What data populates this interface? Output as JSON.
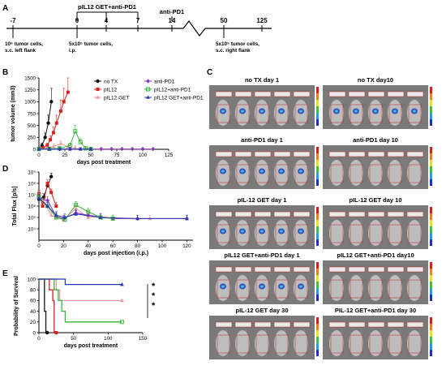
{
  "panel_labels": {
    "A": "A",
    "B": "B",
    "C": "C",
    "D": "D",
    "E": "E"
  },
  "timeline": {
    "ticks": [
      "-7",
      "0",
      "4",
      "7",
      "14",
      "50",
      "125"
    ],
    "top_labels": [
      {
        "text": "pIL12 GET+anti-PD1"
      },
      {
        "text": "anti-PD1"
      }
    ],
    "bottom_labels": [
      {
        "line1": "10⁶ tumor cells,",
        "line2": "s.c. left flank"
      },
      {
        "line1": "5x10⁵ tumor cells,",
        "line2": "i.p."
      },
      {
        "line1": "5x10⁵ tumor cells,",
        "line2": "s.c. right flank"
      }
    ]
  },
  "colors": {
    "noTX": "#111111",
    "pIL12": "#d42020",
    "pIL12GET": "#e89aa0",
    "antiPD1": "#8a35b8",
    "pIL12antiPD1": "#3ab53a",
    "combo": "#2838b0"
  },
  "chart_data": [
    {
      "id": "B",
      "type": "line",
      "ylabel": "tumor volume (mm3)",
      "xlabel": "days post treatment",
      "xlim": [
        0,
        125
      ],
      "ylim": [
        0,
        1500
      ],
      "x_ticks": [
        "0",
        "25",
        "50",
        "75",
        "100",
        "125"
      ],
      "y_ticks": [
        "0",
        "250",
        "500",
        "750",
        "1000",
        "1250",
        "1500"
      ],
      "legend": [
        "no TX",
        "pIL12",
        "pIL12 GET",
        "anti-PD1",
        "pIL12+anti-PD1",
        "pIL12 GET+anti-PD1"
      ],
      "series": [
        {
          "name": "no TX",
          "x": [
            0,
            3,
            6,
            9,
            12
          ],
          "y": [
            10,
            80,
            250,
            550,
            1000
          ]
        },
        {
          "name": "pIL12",
          "x": [
            0,
            4,
            8,
            11,
            14,
            17,
            21,
            24,
            28
          ],
          "y": [
            5,
            30,
            80,
            200,
            350,
            550,
            800,
            1000,
            1200
          ]
        },
        {
          "name": "pIL12 GET",
          "x": [
            0,
            7,
            14,
            21,
            28,
            35
          ],
          "y": [
            5,
            20,
            60,
            120,
            50,
            30
          ]
        },
        {
          "name": "anti-PD1",
          "x": [
            0,
            10,
            20,
            30,
            40,
            50,
            60,
            70,
            80,
            90,
            100,
            110
          ],
          "y": [
            5,
            5,
            5,
            5,
            5,
            5,
            5,
            5,
            5,
            5,
            5,
            5
          ]
        },
        {
          "name": "pIL12+anti-PD1",
          "x": [
            0,
            10,
            20,
            30,
            35,
            40,
            45,
            50
          ],
          "y": [
            5,
            10,
            20,
            80,
            380,
            150,
            20,
            5
          ]
        },
        {
          "name": "pIL12 GET+anti-PD1",
          "x": [
            0,
            10,
            20,
            30,
            40,
            50
          ],
          "y": [
            5,
            5,
            5,
            5,
            5,
            5
          ]
        }
      ]
    },
    {
      "id": "D",
      "type": "line",
      "ylabel": "Total Flux [p/s]",
      "xlabel": "days post injection (i.p.)",
      "yscale": "log",
      "xlim": [
        0,
        125
      ],
      "ylim": [
        3,
        9
      ],
      "x_ticks": [
        "0",
        "20",
        "40",
        "60",
        "80",
        "100",
        "120"
      ],
      "y_ticks": [
        "10⁴",
        "10⁵",
        "10⁶",
        "10⁷",
        "10⁸",
        "10⁹"
      ],
      "series": [
        {
          "name": "no TX",
          "x": [
            0,
            4,
            7,
            10
          ],
          "y": [
            6.6,
            6.8,
            7.8,
            8.6
          ]
        },
        {
          "name": "pIL12",
          "x": [
            0,
            3,
            7,
            10,
            14
          ],
          "y": [
            7.1,
            6.0,
            8.0,
            7.2,
            6.0
          ]
        },
        {
          "name": "pIL12 GET",
          "x": [
            0,
            5,
            10,
            14,
            20,
            30,
            40,
            50,
            60,
            90,
            120
          ],
          "y": [
            6.8,
            6.2,
            5.2,
            5.0,
            4.8,
            5.8,
            5.0,
            5.1,
            4.9,
            4.9,
            4.9
          ]
        },
        {
          "name": "anti-PD1",
          "x": [
            0,
            7,
            14,
            20,
            30,
            40,
            60,
            80,
            120
          ],
          "y": [
            6.7,
            6.5,
            5.1,
            4.9,
            5.4,
            5.2,
            4.9,
            4.9,
            4.9
          ]
        },
        {
          "name": "pIL12+anti-PD1",
          "x": [
            0,
            7,
            14,
            21,
            30,
            40,
            50,
            60
          ],
          "y": [
            6.8,
            6.0,
            5.0,
            4.8,
            6.1,
            5.5,
            5.0,
            4.9
          ]
        },
        {
          "name": "pIL12 GET+anti-PD1",
          "x": [
            0,
            7,
            14,
            21,
            30,
            50,
            80,
            120
          ],
          "y": [
            6.7,
            6.0,
            5.2,
            5.0,
            5.3,
            5.0,
            4.9,
            4.9
          ]
        }
      ]
    },
    {
      "id": "E",
      "type": "line",
      "ylabel": "Probability of Survival",
      "xlabel": "days post treatment",
      "xlim": [
        0,
        150
      ],
      "ylim": [
        0,
        100
      ],
      "x_ticks": [
        "0",
        "50",
        "100",
        "150"
      ],
      "y_ticks": [
        "0",
        "20",
        "40",
        "60",
        "80",
        "100"
      ],
      "significance": [
        "*",
        "*",
        "*"
      ],
      "series": [
        {
          "name": "no TX",
          "x": [
            0,
            8,
            8,
            10,
            10,
            12
          ],
          "y": [
            100,
            100,
            40,
            40,
            0,
            0
          ]
        },
        {
          "name": "pIL12",
          "x": [
            0,
            15,
            15,
            20,
            20,
            22,
            22,
            25
          ],
          "y": [
            100,
            100,
            80,
            80,
            60,
            60,
            0,
            0
          ]
        },
        {
          "name": "pIL12 GET",
          "x": [
            0,
            25,
            25,
            30,
            30,
            120
          ],
          "y": [
            100,
            100,
            80,
            80,
            60,
            60
          ]
        },
        {
          "name": "pIL12+anti-PD1",
          "x": [
            0,
            22,
            22,
            28,
            28,
            33,
            33,
            38,
            38,
            120
          ],
          "y": [
            100,
            100,
            80,
            80,
            60,
            60,
            40,
            40,
            20,
            20
          ]
        },
        {
          "name": "pIL12 GET+anti-PD1",
          "x": [
            0,
            38,
            38,
            120
          ],
          "y": [
            100,
            100,
            90,
            90
          ]
        }
      ]
    }
  ],
  "imaging": {
    "titles": [
      "no TX  day 1",
      "no TX  day10",
      "anti-PD1 day 1",
      "anti-PD1 day 10",
      "pIL-12 GET  day 1",
      "pIL-12 GET day 10",
      "pIL12 GET+anti-PD1  day 1",
      "pIL12 GET+anti-PD1 day10",
      "pIL-12 GET day 30",
      "PIL-12 GET+anti-PD1 day 30"
    ]
  }
}
